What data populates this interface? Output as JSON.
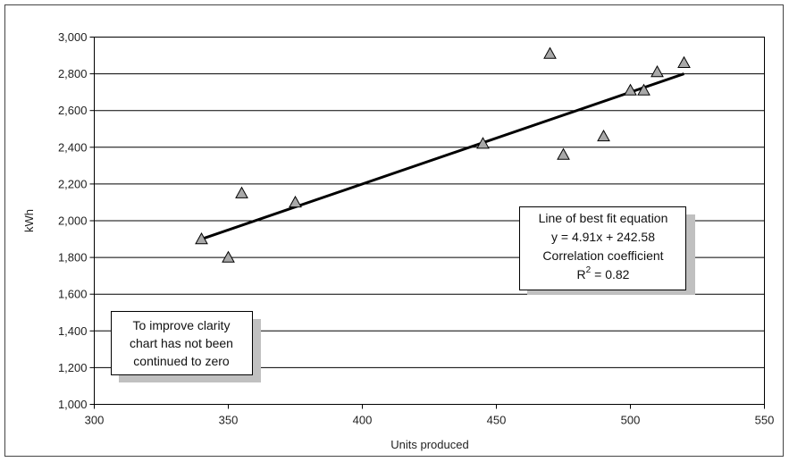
{
  "chart_data": {
    "type": "scatter",
    "xlabel": "Units produced",
    "ylabel": "kWh",
    "xlim": [
      300,
      550
    ],
    "ylim": [
      1000,
      3000
    ],
    "x_ticks": [
      300,
      350,
      400,
      450,
      500,
      550
    ],
    "y_ticks": [
      1000,
      1200,
      1400,
      1600,
      1800,
      2000,
      2200,
      2400,
      2600,
      2800,
      3000
    ],
    "x_tick_labels": [
      "300",
      "350",
      "400",
      "450",
      "500",
      "550"
    ],
    "y_tick_labels": [
      "1,000",
      "1,200",
      "1,400",
      "1,600",
      "1,800",
      "2,000",
      "2,200",
      "2,400",
      "2,600",
      "2,800",
      "3,000"
    ],
    "grid": "horizontal",
    "marker": "triangle",
    "marker_color": "#a8a8a8",
    "series": [
      {
        "points": [
          {
            "x": 340,
            "y": 1900
          },
          {
            "x": 350,
            "y": 1800
          },
          {
            "x": 355,
            "y": 2150
          },
          {
            "x": 375,
            "y": 2100
          },
          {
            "x": 445,
            "y": 2420
          },
          {
            "x": 470,
            "y": 2910
          },
          {
            "x": 475,
            "y": 2360
          },
          {
            "x": 490,
            "y": 2460
          },
          {
            "x": 500,
            "y": 2710
          },
          {
            "x": 505,
            "y": 2710
          },
          {
            "x": 510,
            "y": 2810
          },
          {
            "x": 520,
            "y": 2860
          }
        ]
      }
    ],
    "trendline": {
      "x": [
        340,
        520
      ],
      "y": [
        1900,
        2800
      ]
    },
    "annotations": {
      "fit_box": {
        "line1": "Line of best fit equation",
        "line2": "y = 4.91x + 242.58",
        "line3": "Correlation coefficient",
        "line4_prefix": "R",
        "line4_sup": "2",
        "line4_suffix": " = 0.82"
      },
      "clarity_box": {
        "line1": "To improve clarity",
        "line2": "chart has not been",
        "line3": "continued to zero"
      }
    }
  }
}
